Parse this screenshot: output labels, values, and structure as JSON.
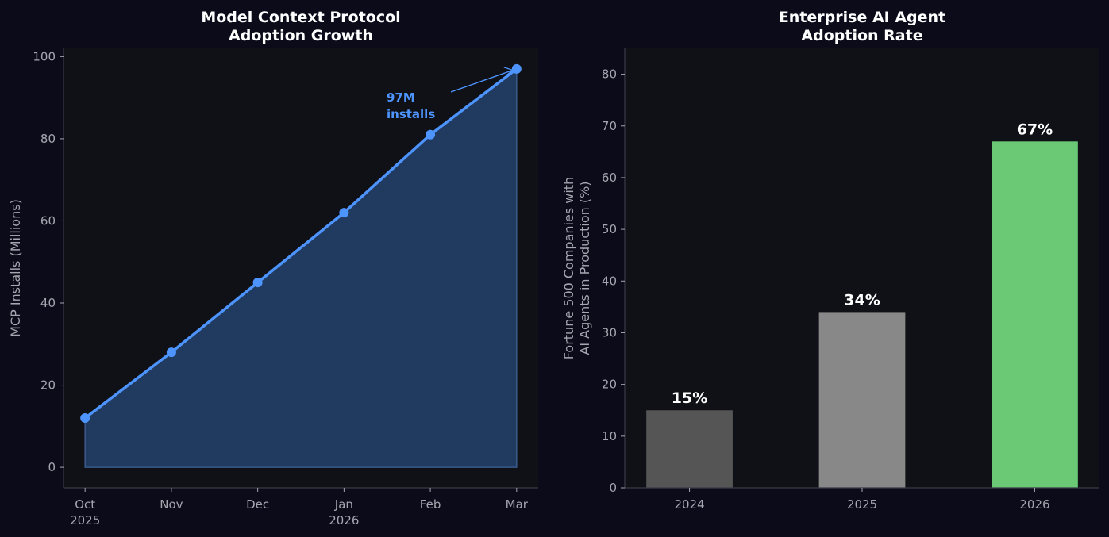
{
  "colors": {
    "figure_background": "#0b0b1a",
    "plot_background": "#101116",
    "line": "#4d94ff",
    "area_fill": "#213a60",
    "bar_2024": "#555555",
    "bar_2025": "#888888",
    "bar_2026": "#6bc976",
    "tick_text": "#a6a6b0"
  },
  "chart_data": [
    {
      "type": "area",
      "title": "Model Context Protocol\nAdoption Growth",
      "xlabel": "",
      "ylabel": "MCP Installs (Millions)",
      "x": [
        "2025-10",
        "2025-11",
        "2025-12",
        "2026-01",
        "2026-02",
        "2026-03"
      ],
      "x_tick_labels": [
        [
          "Oct",
          "2025"
        ],
        [
          "Nov"
        ],
        [
          "Dec"
        ],
        [
          "Jan",
          "2026"
        ],
        [
          "Feb"
        ],
        [
          "Mar"
        ]
      ],
      "series": [
        {
          "values": [
            12,
            28,
            45,
            62,
            81,
            97
          ]
        }
      ],
      "ylim": [
        -5,
        102
      ],
      "y_ticks": [
        0,
        20,
        40,
        60,
        80,
        100
      ],
      "grid": false,
      "annotation": {
        "text": [
          "97M",
          "installs"
        ],
        "points_to": "2026-03",
        "value": 97
      }
    },
    {
      "type": "bar",
      "title": "Enterprise AI Agent\nAdoption Rate",
      "xlabel": "",
      "ylabel": "Fortune 500 Companies with\nAI Agents in Production (%)",
      "categories": [
        "2024",
        "2025",
        "2026"
      ],
      "values": [
        15,
        34,
        67
      ],
      "data_labels": [
        "15%",
        "34%",
        "67%"
      ],
      "ylim": [
        0,
        85
      ],
      "y_ticks": [
        0,
        10,
        20,
        30,
        40,
        50,
        60,
        70,
        80
      ],
      "grid": false
    }
  ]
}
